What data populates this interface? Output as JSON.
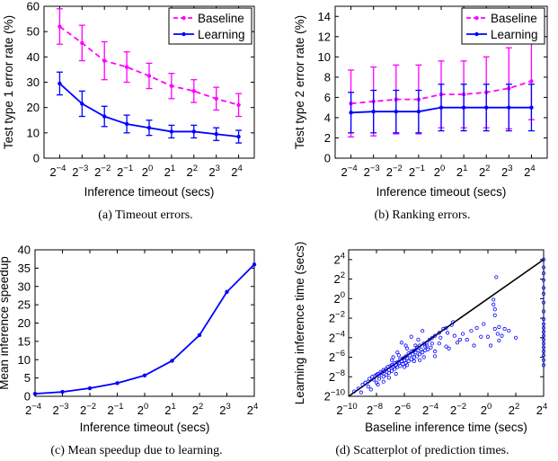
{
  "colors": {
    "baseline": "#ff00ff",
    "learning": "#0000ff",
    "diagonal": "#000000"
  },
  "chart_data": [
    {
      "id": "a",
      "type": "line",
      "caption": "(a)  Timeout errors.",
      "xlabel": "Inference timeout (secs)",
      "ylabel": "Test type 1 error rate (%)",
      "xscale": "log2",
      "x": [
        -4,
        -3,
        -2,
        -1,
        0,
        1,
        2,
        3,
        4
      ],
      "x_tick_labels": [
        {
          "b": "2",
          "e": "−4"
        },
        {
          "b": "2",
          "e": "−3"
        },
        {
          "b": "2",
          "e": "−2"
        },
        {
          "b": "2",
          "e": "−1"
        },
        {
          "b": "2",
          "e": "0"
        },
        {
          "b": "2",
          "e": "1"
        },
        {
          "b": "2",
          "e": "2"
        },
        {
          "b": "2",
          "e": "3"
        },
        {
          "b": "2",
          "e": "4"
        }
      ],
      "xlim": [
        -4.7,
        4.7
      ],
      "ylim": [
        0,
        60
      ],
      "y_ticks": [
        "0",
        "10",
        "20",
        "30",
        "40",
        "50",
        "60"
      ],
      "legend": {
        "position": "top-right",
        "entries": [
          "Baseline",
          "Learning"
        ]
      },
      "series": [
        {
          "name": "Baseline",
          "style": "dashed",
          "color": "#ff00ff",
          "values": [
            52,
            45.5,
            38.5,
            36,
            32.5,
            28.5,
            26.5,
            23.5,
            21
          ],
          "errors": [
            7,
            7,
            7.5,
            6,
            5,
            5,
            4.5,
            4.5,
            4.5
          ]
        },
        {
          "name": "Learning",
          "style": "solid",
          "color": "#0000ff",
          "values": [
            29.5,
            21.5,
            16.5,
            13.5,
            12,
            10.5,
            10.5,
            9.5,
            8.5
          ],
          "errors": [
            4.5,
            5,
            4,
            3.5,
            3,
            2.5,
            2.5,
            2.5,
            2.5
          ]
        }
      ]
    },
    {
      "id": "b",
      "type": "line",
      "caption": "(b)  Ranking errors.",
      "xlabel": "Inference timeout (secs)",
      "ylabel": "Test type 2 error rate (%)",
      "xscale": "log2",
      "x": [
        -4,
        -3,
        -2,
        -1,
        0,
        1,
        2,
        3,
        4
      ],
      "x_tick_labels": [
        {
          "b": "2",
          "e": "−4"
        },
        {
          "b": "2",
          "e": "−3"
        },
        {
          "b": "2",
          "e": "−2"
        },
        {
          "b": "2",
          "e": "−1"
        },
        {
          "b": "2",
          "e": "0"
        },
        {
          "b": "2",
          "e": "1"
        },
        {
          "b": "2",
          "e": "2"
        },
        {
          "b": "2",
          "e": "3"
        },
        {
          "b": "2",
          "e": "4"
        }
      ],
      "xlim": [
        -4.7,
        4.7
      ],
      "ylim": [
        0,
        15
      ],
      "y_ticks": [
        "0",
        "2",
        "4",
        "6",
        "8",
        "10",
        "12",
        "14"
      ],
      "y_tick_values": [
        0,
        2,
        4,
        6,
        8,
        10,
        12,
        14
      ],
      "legend": {
        "position": "top-right",
        "entries": [
          "Baseline",
          "Learning"
        ]
      },
      "series": [
        {
          "name": "Baseline",
          "style": "dashed",
          "color": "#ff00ff",
          "values": [
            5.4,
            5.6,
            5.8,
            5.8,
            6.3,
            6.3,
            6.5,
            6.9,
            7.6
          ],
          "errors": [
            3.3,
            3.4,
            3.4,
            3.4,
            3.3,
            3.3,
            3.5,
            4,
            3.8
          ]
        },
        {
          "name": "Learning",
          "style": "solid",
          "color": "#0000ff",
          "values": [
            4.5,
            4.6,
            4.6,
            4.6,
            5,
            5,
            5,
            5,
            5
          ],
          "errors": [
            2,
            2.1,
            2.1,
            2.1,
            2.3,
            2.3,
            2.3,
            2.3,
            2.3
          ]
        }
      ]
    },
    {
      "id": "c",
      "type": "line",
      "caption": "(c)  Mean speedup due to learning.",
      "xlabel": "Inference timeout (secs)",
      "ylabel": "Mean inference speedup",
      "xscale": "log2",
      "x": [
        -4,
        -3,
        -2,
        -1,
        0,
        1,
        2,
        3,
        4
      ],
      "x_tick_labels": [
        {
          "b": "2",
          "e": "−4"
        },
        {
          "b": "2",
          "e": "−3"
        },
        {
          "b": "2",
          "e": "−2"
        },
        {
          "b": "2",
          "e": "−1"
        },
        {
          "b": "2",
          "e": "0"
        },
        {
          "b": "2",
          "e": "1"
        },
        {
          "b": "2",
          "e": "2"
        },
        {
          "b": "2",
          "e": "3"
        },
        {
          "b": "2",
          "e": "4"
        }
      ],
      "xlim": [
        -4,
        4
      ],
      "ylim": [
        0,
        40
      ],
      "y_ticks": [
        "0",
        "5",
        "10",
        "15",
        "20",
        "25",
        "30",
        "35",
        "40"
      ],
      "series": [
        {
          "name": "",
          "style": "solid",
          "color": "#0000ff",
          "values": [
            0.7,
            1.2,
            2.2,
            3.6,
            5.7,
            9.7,
            16.7,
            28.5,
            36
          ]
        }
      ]
    },
    {
      "id": "d",
      "type": "scatter",
      "caption": "(d)  Scatterplot of prediction times.",
      "xlabel": "Baseline inference time (secs)",
      "ylabel": "Learning inference time (secs)",
      "xscale": "log2",
      "yscale": "log2",
      "xlim": [
        -10,
        4
      ],
      "ylim": [
        -10,
        5
      ],
      "x_tick_labels": [
        {
          "b": "2",
          "e": "−10"
        },
        {
          "b": "2",
          "e": "−8"
        },
        {
          "b": "2",
          "e": "−6"
        },
        {
          "b": "2",
          "e": "−4"
        },
        {
          "b": "2",
          "e": "−2"
        },
        {
          "b": "2",
          "e": "0"
        },
        {
          "b": "2",
          "e": "2"
        },
        {
          "b": "2",
          "e": "4"
        }
      ],
      "y_tick_labels": [
        {
          "b": "2",
          "e": "−10"
        },
        {
          "b": "2",
          "e": "−8"
        },
        {
          "b": "2",
          "e": "−6"
        },
        {
          "b": "2",
          "e": "−4"
        },
        {
          "b": "2",
          "e": "−2"
        },
        {
          "b": "2",
          "e": "0"
        },
        {
          "b": "2",
          "e": "2"
        },
        {
          "b": "2",
          "e": "4"
        }
      ],
      "diagonal": true,
      "points": [
        [
          -9.6,
          -9.5
        ],
        [
          -9.3,
          -9.2
        ],
        [
          -9.0,
          -8.8
        ],
        [
          -8.8,
          -8.6
        ],
        [
          -8.6,
          -8.5
        ],
        [
          -8.5,
          -8.2
        ],
        [
          -8.3,
          -8.0
        ],
        [
          -8.2,
          -8.3
        ],
        [
          -8.1,
          -7.9
        ],
        [
          -8.0,
          -7.8
        ],
        [
          -7.9,
          -7.7
        ],
        [
          -7.8,
          -7.9
        ],
        [
          -7.7,
          -7.5
        ],
        [
          -7.6,
          -7.6
        ],
        [
          -7.5,
          -7.3
        ],
        [
          -7.4,
          -7.4
        ],
        [
          -7.3,
          -7.2
        ],
        [
          -7.2,
          -7.0
        ],
        [
          -7.1,
          -7.3
        ],
        [
          -7.0,
          -6.9
        ],
        [
          -6.9,
          -6.8
        ],
        [
          -6.8,
          -7.0
        ],
        [
          -6.7,
          -6.6
        ],
        [
          -6.6,
          -6.8
        ],
        [
          -6.5,
          -6.5
        ],
        [
          -6.4,
          -6.6
        ],
        [
          -6.3,
          -6.2
        ],
        [
          -6.2,
          -6.4
        ],
        [
          -6.1,
          -6.1
        ],
        [
          -6.0,
          -6.3
        ],
        [
          -5.9,
          -5.9
        ],
        [
          -5.8,
          -6.1
        ],
        [
          -5.7,
          -5.6
        ],
        [
          -5.6,
          -5.8
        ],
        [
          -5.5,
          -5.4
        ],
        [
          -5.4,
          -5.7
        ],
        [
          -5.3,
          -5.3
        ],
        [
          -5.2,
          -5.5
        ],
        [
          -5.1,
          -5.0
        ],
        [
          -5.0,
          -5.3
        ],
        [
          -4.9,
          -4.8
        ],
        [
          -4.8,
          -5.2
        ],
        [
          -4.6,
          -4.6
        ],
        [
          -4.4,
          -4.5
        ],
        [
          -4.2,
          -4.2
        ],
        [
          -4.0,
          -4.0
        ],
        [
          -3.8,
          -3.8
        ],
        [
          -3.5,
          -3.5
        ],
        [
          -3.0,
          -3.0
        ],
        [
          -2.5,
          -2.4
        ],
        [
          -8.0,
          -8.6
        ],
        [
          -7.8,
          -8.2
        ],
        [
          -7.5,
          -8.0
        ],
        [
          -7.3,
          -7.8
        ],
        [
          -7.1,
          -7.6
        ],
        [
          -6.9,
          -7.4
        ],
        [
          -6.7,
          -7.2
        ],
        [
          -6.5,
          -7.0
        ],
        [
          -6.3,
          -6.9
        ],
        [
          -6.1,
          -6.7
        ],
        [
          -5.9,
          -6.6
        ],
        [
          -5.7,
          -6.4
        ],
        [
          -5.5,
          -6.2
        ],
        [
          -5.3,
          -6.0
        ],
        [
          -5.1,
          -5.9
        ],
        [
          -4.9,
          -5.7
        ],
        [
          -4.7,
          -5.5
        ],
        [
          -4.5,
          -5.3
        ],
        [
          -4.3,
          -5.2
        ],
        [
          -4.1,
          -5.0
        ],
        [
          -6.8,
          -6.0
        ],
        [
          -6.5,
          -5.5
        ],
        [
          -6.2,
          -4.5
        ],
        [
          -5.9,
          -4.8
        ],
        [
          -5.5,
          -3.9
        ],
        [
          -5.0,
          -4.2
        ],
        [
          -4.7,
          -3.3
        ],
        [
          -4.5,
          -4.9
        ],
        [
          -4.0,
          -4.6
        ],
        [
          -3.8,
          -5.4
        ],
        [
          -3.5,
          -4.6
        ],
        [
          -3.2,
          -3.1
        ],
        [
          -3.0,
          -4.9
        ],
        [
          -2.8,
          -5.1
        ],
        [
          -2.6,
          -2.7
        ],
        [
          -2.4,
          -3.8
        ],
        [
          -2.2,
          -4.5
        ],
        [
          -2.0,
          -4.2
        ],
        [
          -1.8,
          -3.6
        ],
        [
          -1.5,
          -4.2
        ],
        [
          -1.2,
          -3.3
        ],
        [
          -1.0,
          -4.8
        ],
        [
          -0.8,
          -3.0
        ],
        [
          -0.5,
          -3.9
        ],
        [
          -0.3,
          -2.6
        ],
        [
          0.0,
          -3.9
        ],
        [
          0.2,
          -4.8
        ],
        [
          0.5,
          -3.1
        ],
        [
          0.8,
          -2.9
        ],
        [
          1.2,
          -3.1
        ],
        [
          0.4,
          -0.1
        ],
        [
          0.4,
          -0.6
        ],
        [
          0.5,
          -1.1
        ],
        [
          0.6,
          2.2
        ],
        [
          0.5,
          -1.7
        ],
        [
          0.7,
          -3.6
        ],
        [
          0.8,
          -4.3
        ],
        [
          1.0,
          -3.8
        ],
        [
          1.5,
          -3.3
        ],
        [
          2.0,
          -4.0
        ],
        [
          4.0,
          4.0
        ],
        [
          4.0,
          3.2
        ],
        [
          4.0,
          2.6
        ],
        [
          4.0,
          1.9
        ],
        [
          4.0,
          1.1
        ],
        [
          4.0,
          0.5
        ],
        [
          4.0,
          -0.4
        ],
        [
          4.0,
          -1.3
        ],
        [
          4.0,
          -2.1
        ],
        [
          4.0,
          -2.6
        ],
        [
          4.0,
          -3.0
        ],
        [
          4.0,
          -3.4
        ],
        [
          4.0,
          -3.8
        ],
        [
          4.0,
          -4.2
        ],
        [
          4.0,
          -4.6
        ],
        [
          4.0,
          -5.0
        ],
        [
          4.0,
          -5.4
        ],
        [
          4.0,
          -5.8
        ],
        [
          4.0,
          -6.3
        ],
        [
          4.0,
          -6.8
        ],
        [
          -8.4,
          -9.3
        ],
        [
          -7.9,
          -8.8
        ],
        [
          -7.5,
          -8.5
        ],
        [
          -6.9,
          -6.3
        ],
        [
          -6.4,
          -5.8
        ],
        [
          -5.8,
          -5.1
        ],
        [
          -5.2,
          -4.8
        ],
        [
          -3.8,
          -5.9
        ],
        [
          -3.4,
          -4.0
        ],
        [
          -2.9,
          -3.5
        ],
        [
          -4.9,
          -6.3
        ],
        [
          -4.6,
          -6.0
        ],
        [
          -6.6,
          -7.7
        ],
        [
          -7.1,
          -8.1
        ],
        [
          -5.8,
          -6.8
        ],
        [
          -6.0,
          -7.0
        ],
        [
          -8.6,
          -9.0
        ],
        [
          -9.1,
          -9.6
        ],
        [
          -5.3,
          -6.4
        ],
        [
          -4.4,
          -4.8
        ]
      ]
    }
  ]
}
